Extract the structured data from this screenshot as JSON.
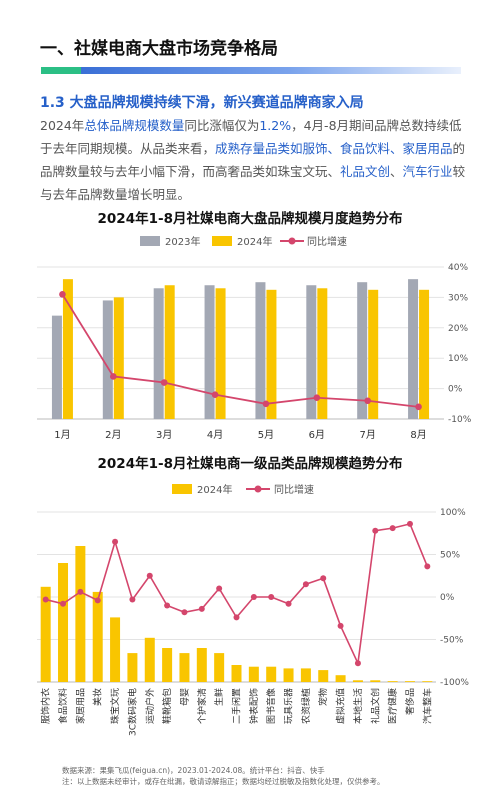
{
  "section_title": "一、社媒电商大盘市场竞争格局",
  "subsection_title": "1.3 大盘品牌规模持续下滑，新兴赛道品牌商家入局",
  "paragraph": [
    {
      "t": "2024年",
      "hl": false
    },
    {
      "t": "总体品牌规模数量",
      "hl": true
    },
    {
      "t": "同比涨幅仅为",
      "hl": false
    },
    {
      "t": "1.2%",
      "hl": true
    },
    {
      "t": "，4月-8月期间品牌总数持续低于去年同期规模。从品类来看，",
      "hl": false
    },
    {
      "t": "成熟存量品类如服饰、食品饮料、家居用品",
      "hl": true
    },
    {
      "t": "的品牌数量较与去年小幅下滑，而高奢品类如珠宝文玩、",
      "hl": false
    },
    {
      "t": "礼品文创",
      "hl": true
    },
    {
      "t": "、",
      "hl": false
    },
    {
      "t": "汽车行业",
      "hl": true
    },
    {
      "t": "较与去年品牌数量增长明显。",
      "hl": false
    }
  ],
  "colors": {
    "bar2023": "#a3a8b4",
    "bar2024": "#f9c500",
    "line": "#d4466c",
    "accent": "#2660c9"
  },
  "chart_data": [
    {
      "type": "bar",
      "title": "2024年1-8月社媒电商大盘品牌规模月度趋势分布",
      "categories": [
        "1月",
        "2月",
        "3月",
        "4月",
        "5月",
        "6月",
        "7月",
        "8月"
      ],
      "series": [
        {
          "name": "2023年",
          "kind": "bar",
          "values": [
            0.68,
            0.78,
            0.86,
            0.88,
            0.9,
            0.88,
            0.9,
            0.92
          ]
        },
        {
          "name": "2024年",
          "kind": "bar",
          "values": [
            0.92,
            0.8,
            0.88,
            0.86,
            0.85,
            0.86,
            0.85,
            0.85
          ]
        },
        {
          "name": "同比增速",
          "kind": "line",
          "axis": "right",
          "values": [
            31,
            4,
            2,
            -2,
            -5,
            -3,
            -4,
            -6
          ]
        }
      ],
      "yright_ticks": [
        "40%",
        "30%",
        "20%",
        "10%",
        "0%",
        "-10%"
      ],
      "yright_lim": [
        -10,
        40
      ],
      "legend": "top"
    },
    {
      "type": "bar",
      "title": "2024年1-8月社媒电商一级品类品牌规模趋势分布",
      "categories": [
        "服饰内衣",
        "食品饮料",
        "家居用品",
        "美妆",
        "珠宝文玩",
        "3C数码家电",
        "运动户外",
        "鞋靴箱包",
        "母婴",
        "个护家清",
        "生鲜",
        "二手闲置",
        "钟表配饰",
        "图书音像",
        "玩具乐器",
        "农资绿植",
        "宠物",
        "虚拟充值",
        "本地生活",
        "礼品文创",
        "医疗健康",
        "奢侈品",
        "汽车整车"
      ],
      "series": [
        {
          "name": "2024年",
          "kind": "bar",
          "values": [
            0.56,
            0.7,
            0.8,
            0.53,
            0.38,
            0.17,
            0.26,
            0.2,
            0.17,
            0.2,
            0.17,
            0.1,
            0.09,
            0.09,
            0.08,
            0.08,
            0.07,
            0.04,
            0.01,
            0.01,
            0.005,
            0.005,
            0.003
          ]
        },
        {
          "name": "同比增速",
          "kind": "line",
          "axis": "right",
          "values": [
            -3,
            -8,
            6,
            -4,
            65,
            -3,
            25,
            -10,
            -18,
            -14,
            10,
            -24,
            0,
            0,
            -8,
            15,
            22,
            -34,
            -78,
            78,
            81,
            86,
            36
          ]
        }
      ],
      "yright_ticks": [
        "100%",
        "50%",
        "0%",
        "-50%",
        "-100%"
      ],
      "yright_lim": [
        -100,
        100
      ],
      "legend": "top"
    }
  ],
  "footnote": {
    "line1": "数据来源：果集飞瓜(feigua.cn)，2023.01-2024.08。统计平台：抖音、快手",
    "line2": "注：以上数据未经审计，或存在纰漏，敬请谅解指正；数据均经过脱敏及指数化处理，仅供参考。"
  }
}
